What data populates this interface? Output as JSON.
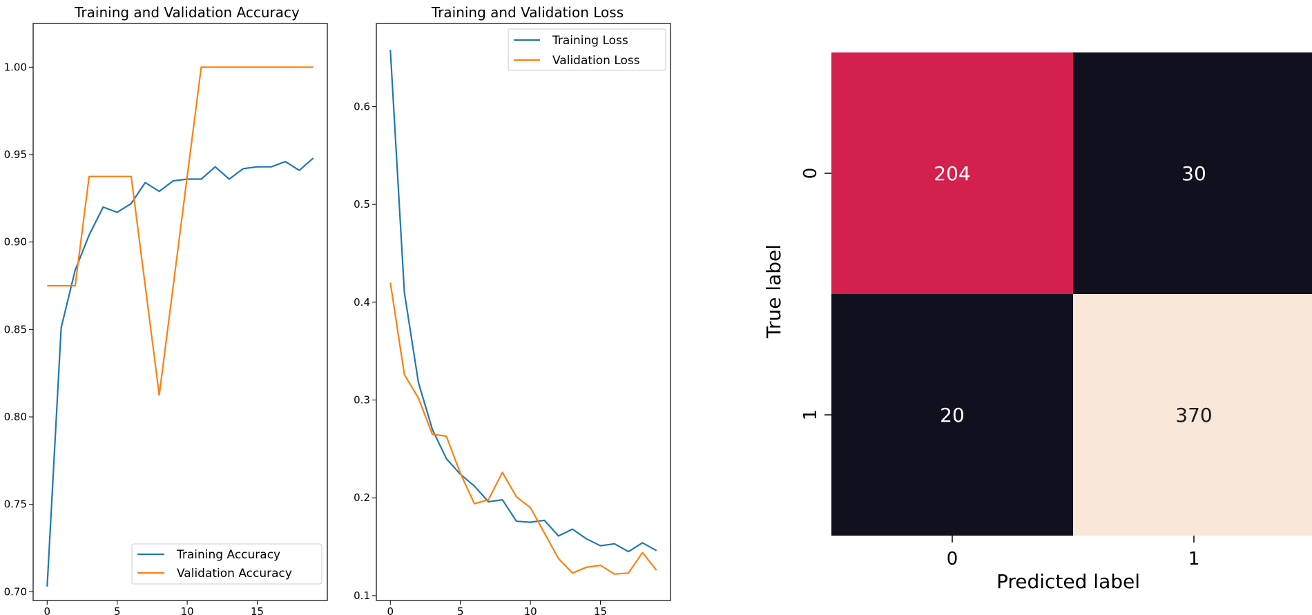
{
  "colors": {
    "train": "#1f77b4",
    "val": "#ff7f0e",
    "cm_high": "#f9e8da",
    "cm_mid": "#d3204c",
    "cm_low": "#11101e"
  },
  "chart_data": [
    {
      "type": "line",
      "title": "Training and Validation Accuracy",
      "xlim": [
        -1,
        20
      ],
      "ylim": [
        0.695,
        1.025
      ],
      "xticks": [
        0,
        5,
        10,
        15
      ],
      "yticks": [
        0.7,
        0.75,
        0.8,
        0.85,
        0.9,
        0.95,
        1.0
      ],
      "legend_position": "lower-right",
      "series": [
        {
          "name": "Training Accuracy",
          "color": "#1f77b4",
          "x": [
            0,
            1,
            2,
            3,
            4,
            5,
            6,
            7,
            8,
            9,
            10,
            11,
            12,
            13,
            14,
            15,
            16,
            17,
            18,
            19
          ],
          "y": [
            0.703,
            0.851,
            0.884,
            0.904,
            0.92,
            0.917,
            0.922,
            0.934,
            0.929,
            0.935,
            0.936,
            0.936,
            0.943,
            0.936,
            0.942,
            0.943,
            0.943,
            0.946,
            0.941,
            0.948
          ]
        },
        {
          "name": "Validation Accuracy",
          "color": "#ff7f0e",
          "x": [
            0,
            1,
            2,
            3,
            4,
            5,
            6,
            7,
            8,
            9,
            10,
            11,
            12,
            13,
            14,
            15,
            16,
            17,
            18,
            19
          ],
          "y": [
            0.875,
            0.875,
            0.875,
            0.9375,
            0.9375,
            0.9375,
            0.9375,
            0.875,
            0.8125,
            0.875,
            0.9375,
            1.0,
            1.0,
            1.0,
            1.0,
            1.0,
            1.0,
            1.0,
            1.0,
            1.0
          ]
        }
      ]
    },
    {
      "type": "line",
      "title": "Training and Validation Loss",
      "xlim": [
        -1,
        20
      ],
      "ylim": [
        0.095,
        0.685
      ],
      "xticks": [
        0,
        5,
        10,
        15
      ],
      "yticks": [
        0.1,
        0.2,
        0.3,
        0.4,
        0.5,
        0.6
      ],
      "legend_position": "upper-right",
      "series": [
        {
          "name": "Training Loss",
          "color": "#1f77b4",
          "x": [
            0,
            1,
            2,
            3,
            4,
            5,
            6,
            7,
            8,
            9,
            10,
            11,
            12,
            13,
            14,
            15,
            16,
            17,
            18,
            19
          ],
          "y": [
            0.658,
            0.41,
            0.318,
            0.27,
            0.24,
            0.224,
            0.212,
            0.196,
            0.198,
            0.176,
            0.175,
            0.177,
            0.161,
            0.168,
            0.158,
            0.151,
            0.153,
            0.145,
            0.154,
            0.146
          ]
        },
        {
          "name": "Validation Loss",
          "color": "#ff7f0e",
          "x": [
            0,
            1,
            2,
            3,
            4,
            5,
            6,
            7,
            8,
            9,
            10,
            11,
            12,
            13,
            14,
            15,
            16,
            17,
            18,
            19
          ],
          "y": [
            0.42,
            0.326,
            0.302,
            0.265,
            0.263,
            0.225,
            0.194,
            0.198,
            0.226,
            0.201,
            0.19,
            0.164,
            0.138,
            0.123,
            0.129,
            0.131,
            0.122,
            0.123,
            0.144,
            0.126
          ]
        }
      ]
    },
    {
      "type": "heatmap",
      "xlabel": "Predicted label",
      "ylabel": "True label",
      "x_categories": [
        "0",
        "1"
      ],
      "y_categories": [
        "0",
        "1"
      ],
      "values": [
        [
          204,
          30
        ],
        [
          20,
          370
        ]
      ]
    }
  ]
}
